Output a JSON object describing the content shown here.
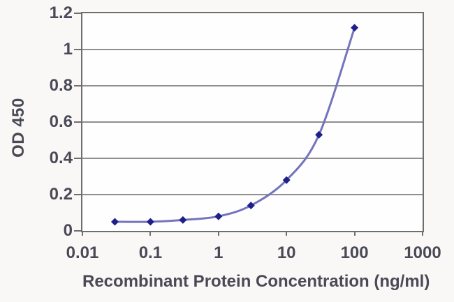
{
  "chart_data": {
    "type": "line",
    "title": "",
    "xlabel": "Recombinant Protein Concentration (ng/ml)",
    "ylabel": "OD 450",
    "x_scale": "log",
    "xlim": [
      0.01,
      1000
    ],
    "ylim": [
      0,
      1.2
    ],
    "grid": "horizontal",
    "legend_position": "none",
    "marker_shape": "diamond",
    "x": [
      0.03,
      0.1,
      0.3,
      1,
      3,
      10,
      30,
      100
    ],
    "y": [
      0.05,
      0.05,
      0.06,
      0.08,
      0.14,
      0.28,
      0.53,
      1.12
    ],
    "x_ticks": [
      {
        "value": 0.01,
        "label": "0.01"
      },
      {
        "value": 0.1,
        "label": "0.1"
      },
      {
        "value": 1,
        "label": "1"
      },
      {
        "value": 10,
        "label": "10"
      },
      {
        "value": 100,
        "label": "100"
      },
      {
        "value": 1000,
        "label": "1000"
      }
    ],
    "y_ticks": [
      {
        "value": 1.2,
        "label": "1.2"
      },
      {
        "value": 1,
        "label": "1"
      },
      {
        "value": 0.8,
        "label": "0.8"
      },
      {
        "value": 0.6,
        "label": "0.6"
      },
      {
        "value": 0.4,
        "label": "0.4"
      },
      {
        "value": 0.2,
        "label": "0.2"
      },
      {
        "value": 0,
        "label": "0"
      }
    ],
    "colors": {
      "line": "#7474bc",
      "marker": "#1f1f8c",
      "grid": "#8f8f8f",
      "border": "#6e6e6e",
      "text": "#4a4a57",
      "plot_bg": "#fefefe",
      "page_bg": "#faf8f6"
    }
  }
}
